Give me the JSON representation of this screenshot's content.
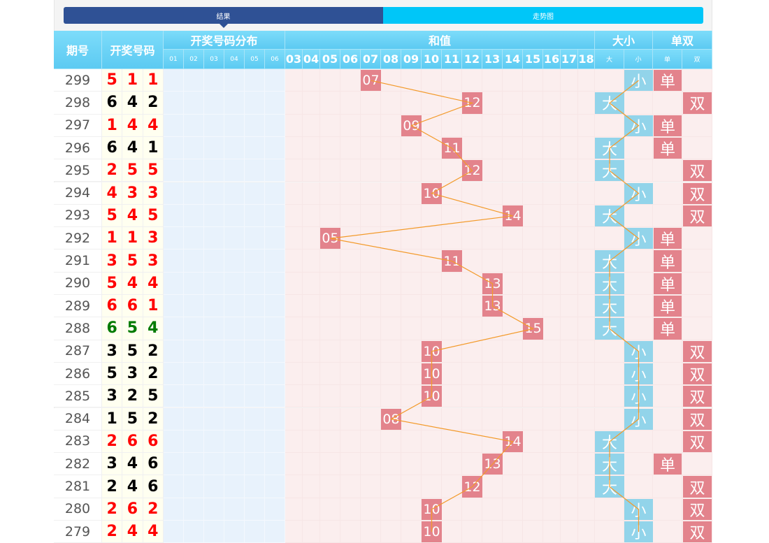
{
  "tabs": [
    {
      "label": "结果",
      "active": true
    },
    {
      "label": "走势图",
      "active": false
    }
  ],
  "header": {
    "period": "期号",
    "numbers": "开奖号码",
    "distribution": "开奖号码分布",
    "sum": "和值",
    "bigsmall": "大小",
    "oddeven": "单双",
    "dist_cols": [
      "01",
      "02",
      "03",
      "04",
      "05",
      "06"
    ],
    "sum_cols": [
      "03",
      "04",
      "05",
      "06",
      "07",
      "08",
      "09",
      "10",
      "11",
      "12",
      "13",
      "14",
      "15",
      "16",
      "17",
      "18"
    ],
    "bigsmall_cols": [
      "大",
      "小"
    ],
    "oddeven_cols": [
      "单",
      "双"
    ]
  },
  "colors": {
    "pair": "#ff0000",
    "straight": "#007a00",
    "distinct": "#000000",
    "marker_red": "#e3838c",
    "marker_blue": "#92d4ea",
    "line": "#f39a2a"
  },
  "rows": [
    {
      "period": "299",
      "nums": [
        "5",
        "1",
        "1"
      ],
      "type": "pair",
      "sum": "07",
      "bs": "小",
      "oe": "单"
    },
    {
      "period": "298",
      "nums": [
        "6",
        "4",
        "2"
      ],
      "type": "distinct",
      "sum": "12",
      "bs": "大",
      "oe": "双"
    },
    {
      "period": "297",
      "nums": [
        "1",
        "4",
        "4"
      ],
      "type": "pair",
      "sum": "09",
      "bs": "小",
      "oe": "单"
    },
    {
      "period": "296",
      "nums": [
        "6",
        "4",
        "1"
      ],
      "type": "distinct",
      "sum": "11",
      "bs": "大",
      "oe": "单"
    },
    {
      "period": "295",
      "nums": [
        "2",
        "5",
        "5"
      ],
      "type": "pair",
      "sum": "12",
      "bs": "大",
      "oe": "双"
    },
    {
      "period": "294",
      "nums": [
        "4",
        "3",
        "3"
      ],
      "type": "pair",
      "sum": "10",
      "bs": "小",
      "oe": "双"
    },
    {
      "period": "293",
      "nums": [
        "5",
        "4",
        "5"
      ],
      "type": "pair",
      "sum": "14",
      "bs": "大",
      "oe": "双"
    },
    {
      "period": "292",
      "nums": [
        "1",
        "1",
        "3"
      ],
      "type": "pair",
      "sum": "05",
      "bs": "小",
      "oe": "单"
    },
    {
      "period": "291",
      "nums": [
        "3",
        "5",
        "3"
      ],
      "type": "pair",
      "sum": "11",
      "bs": "大",
      "oe": "单"
    },
    {
      "period": "290",
      "nums": [
        "5",
        "4",
        "4"
      ],
      "type": "pair",
      "sum": "13",
      "bs": "大",
      "oe": "单"
    },
    {
      "period": "289",
      "nums": [
        "6",
        "6",
        "1"
      ],
      "type": "pair",
      "sum": "13",
      "bs": "大",
      "oe": "单"
    },
    {
      "period": "288",
      "nums": [
        "6",
        "5",
        "4"
      ],
      "type": "straight",
      "sum": "15",
      "bs": "大",
      "oe": "单"
    },
    {
      "period": "287",
      "nums": [
        "3",
        "5",
        "2"
      ],
      "type": "distinct",
      "sum": "10",
      "bs": "小",
      "oe": "双"
    },
    {
      "period": "286",
      "nums": [
        "5",
        "3",
        "2"
      ],
      "type": "distinct",
      "sum": "10",
      "bs": "小",
      "oe": "双"
    },
    {
      "period": "285",
      "nums": [
        "3",
        "2",
        "5"
      ],
      "type": "distinct",
      "sum": "10",
      "bs": "小",
      "oe": "双"
    },
    {
      "period": "284",
      "nums": [
        "1",
        "5",
        "2"
      ],
      "type": "distinct",
      "sum": "08",
      "bs": "小",
      "oe": "双"
    },
    {
      "period": "283",
      "nums": [
        "2",
        "6",
        "6"
      ],
      "type": "pair",
      "sum": "14",
      "bs": "大",
      "oe": "双"
    },
    {
      "period": "282",
      "nums": [
        "3",
        "4",
        "6"
      ],
      "type": "distinct",
      "sum": "13",
      "bs": "大",
      "oe": "单"
    },
    {
      "period": "281",
      "nums": [
        "2",
        "4",
        "6"
      ],
      "type": "distinct",
      "sum": "12",
      "bs": "大",
      "oe": "双"
    },
    {
      "period": "280",
      "nums": [
        "2",
        "6",
        "2"
      ],
      "type": "pair",
      "sum": "10",
      "bs": "小",
      "oe": "双"
    },
    {
      "period": "279",
      "nums": [
        "2",
        "4",
        "4"
      ],
      "type": "pair",
      "sum": "10",
      "bs": "小",
      "oe": "双"
    }
  ]
}
